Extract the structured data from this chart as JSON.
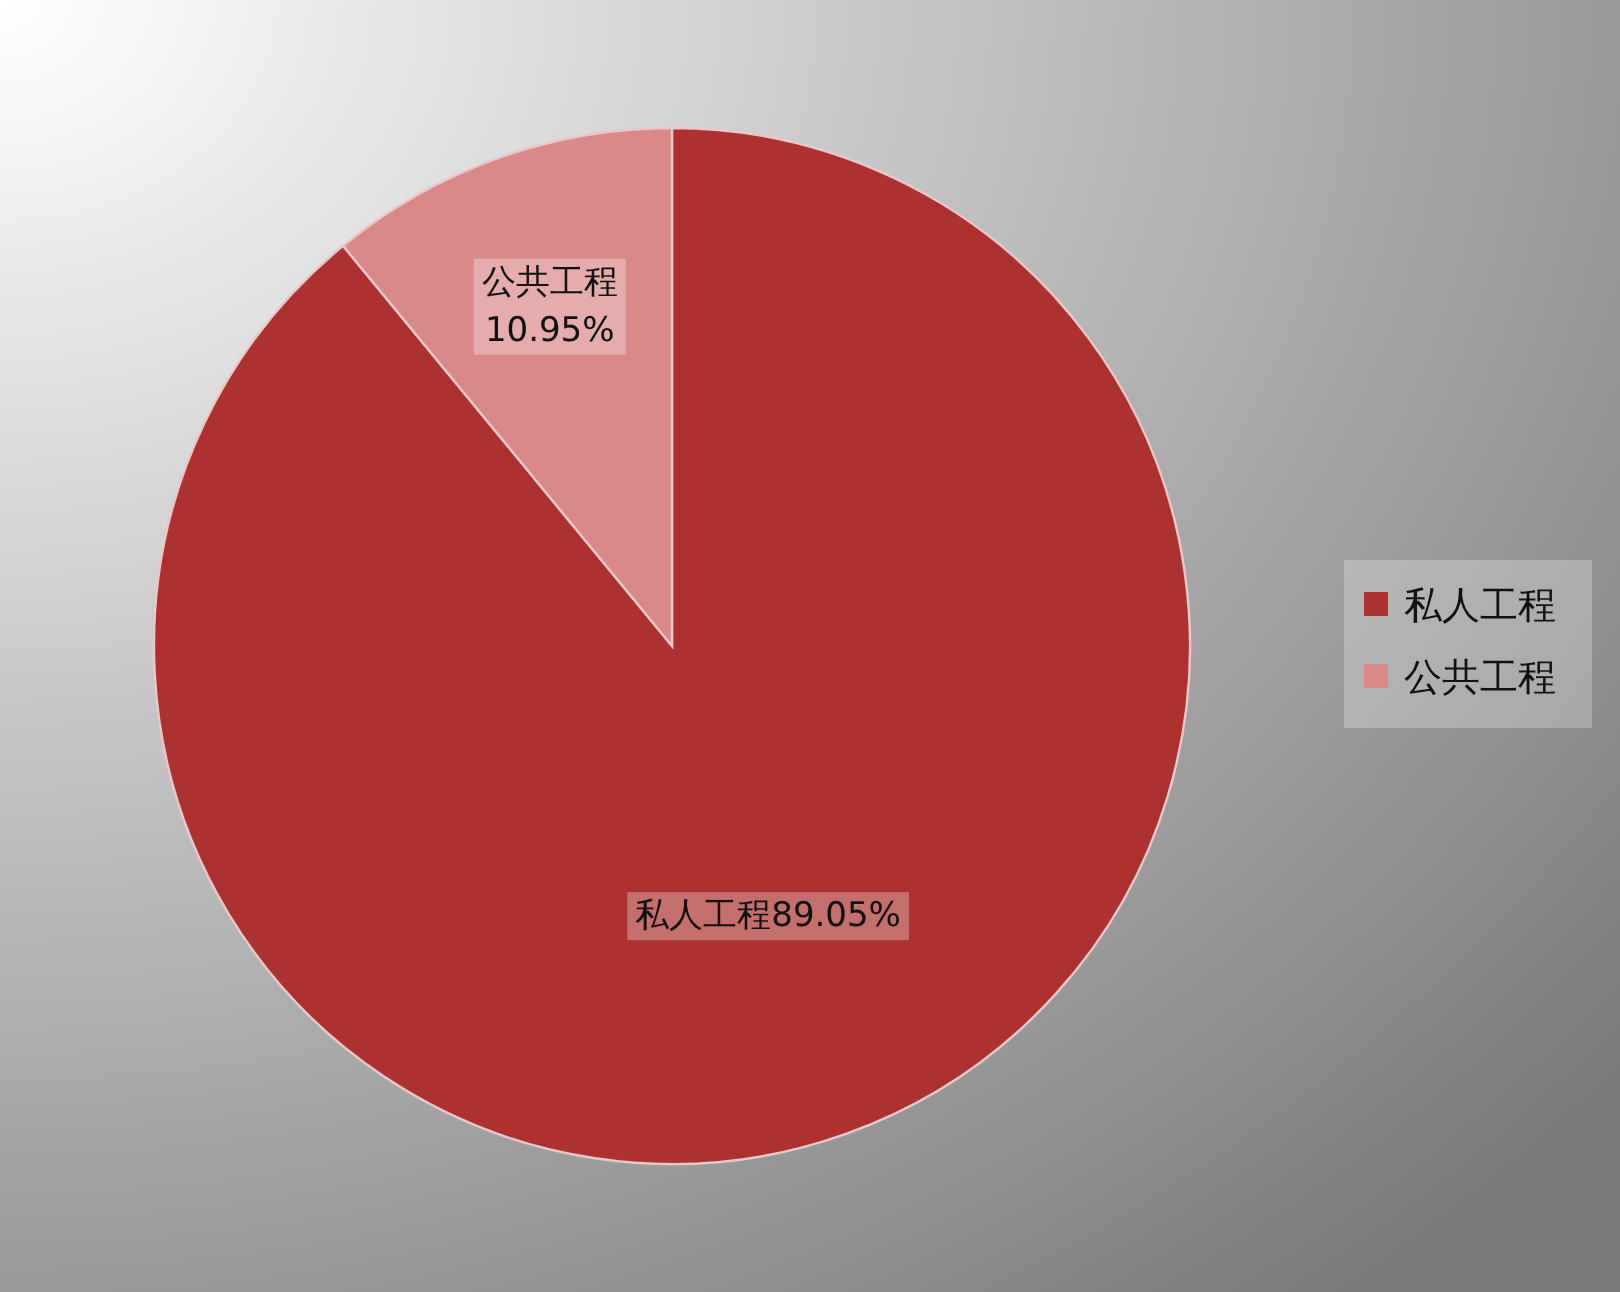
{
  "chart_data": {
    "type": "pie",
    "categories": [
      "私人工程",
      "公共工程"
    ],
    "values": [
      89.05,
      10.95
    ],
    "colors": [
      "#ad312e",
      "#d98a88"
    ],
    "value_labels": [
      "89.05%",
      "10.95%"
    ],
    "legend": "right"
  }
}
